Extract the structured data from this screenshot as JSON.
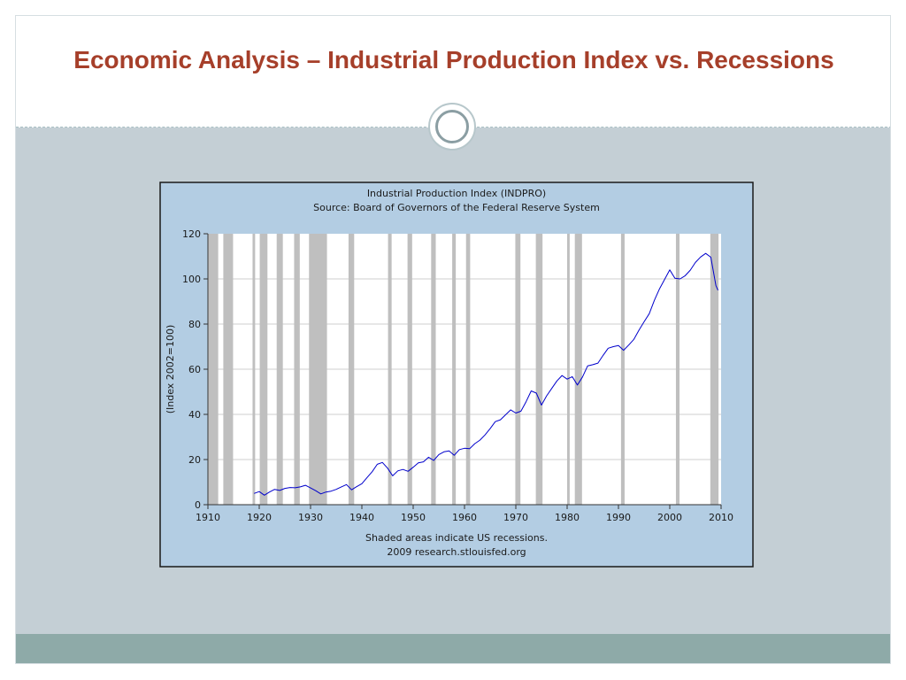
{
  "slide": {
    "title": "Economic Analysis – Industrial Production Index vs. Recessions"
  },
  "chart_data": {
    "type": "line",
    "title": "Industrial Production Index (INDPRO)",
    "subtitle": "Source: Board of Governors of the Federal Reserve System",
    "ylabel": "(Index 2002=100)",
    "note": "Shaded areas indicate US recessions.",
    "credit": "2009 research.stlouisfed.org",
    "xlim": [
      1910,
      2010
    ],
    "ylim": [
      0,
      120
    ],
    "x_ticks": [
      1910,
      1920,
      1930,
      1940,
      1950,
      1960,
      1970,
      1980,
      1990,
      2000,
      2010
    ],
    "y_ticks": [
      0,
      20,
      40,
      60,
      80,
      100,
      120
    ],
    "grid": "horizontal",
    "line_color": "#0000cc",
    "recession_color": "#bfbfbf",
    "recessions": [
      [
        1910.1,
        1912.0
      ],
      [
        1913.0,
        1914.9
      ],
      [
        1918.7,
        1919.2
      ],
      [
        1920.1,
        1921.6
      ],
      [
        1923.4,
        1924.6
      ],
      [
        1926.8,
        1927.9
      ],
      [
        1929.7,
        1933.2
      ],
      [
        1937.4,
        1938.5
      ],
      [
        1945.1,
        1945.8
      ],
      [
        1948.9,
        1949.8
      ],
      [
        1953.5,
        1954.4
      ],
      [
        1957.6,
        1958.3
      ],
      [
        1960.3,
        1961.1
      ],
      [
        1969.9,
        1970.9
      ],
      [
        1973.9,
        1975.2
      ],
      [
        1980.0,
        1980.5
      ],
      [
        1981.5,
        1982.9
      ],
      [
        1990.5,
        1991.2
      ],
      [
        2001.2,
        2001.9
      ],
      [
        2007.9,
        2009.5
      ]
    ],
    "series": [
      {
        "x": [
          1919.0,
          1920.0,
          1921.0,
          1922.0,
          1923.0,
          1924.0,
          1925.0,
          1926.0,
          1927.0,
          1928.0,
          1929.0,
          1930.0,
          1931.0,
          1932.0,
          1933.0,
          1934.0,
          1935.0,
          1936.0,
          1937.0,
          1938.0,
          1939.0,
          1940.0,
          1941.0,
          1942.0,
          1943.0,
          1944.0,
          1945.0,
          1946.0,
          1947.0,
          1948.0,
          1949.0,
          1950.0,
          1951.0,
          1952.0,
          1953.0,
          1954.0,
          1955.0,
          1956.0,
          1957.0,
          1958.0,
          1959.0,
          1960.0,
          1961.0,
          1962.0,
          1963.0,
          1964.0,
          1965.0,
          1966.0,
          1967.0,
          1968.0,
          1969.0,
          1970.0,
          1971.0,
          1972.0,
          1973.0,
          1974.0,
          1975.0,
          1976.0,
          1977.0,
          1978.0,
          1979.0,
          1980.0,
          1981.0,
          1982.0,
          1983.0,
          1984.0,
          1985.0,
          1986.0,
          1987.0,
          1988.0,
          1989.0,
          1990.0,
          1991.0,
          1992.0,
          1993.0,
          1994.0,
          1995.0,
          1996.0,
          1997.0,
          1998.0,
          1999.0,
          2000.0,
          2001.0,
          2002.0,
          2003.0,
          2004.0,
          2005.0,
          2006.0,
          2007.0,
          2008.0,
          2009.0,
          2009.4
        ],
        "values": [
          5.0,
          5.8,
          4.2,
          5.6,
          6.8,
          6.3,
          7.2,
          7.6,
          7.5,
          7.9,
          8.6,
          7.4,
          6.2,
          4.8,
          5.6,
          6.0,
          6.8,
          7.9,
          8.9,
          6.6,
          8.0,
          9.3,
          12.0,
          14.6,
          17.9,
          18.7,
          16.2,
          12.8,
          15.0,
          15.6,
          14.8,
          16.6,
          18.5,
          19.0,
          21.0,
          19.6,
          22.2,
          23.4,
          23.8,
          21.9,
          24.4,
          25.0,
          24.8,
          27.0,
          28.6,
          30.9,
          33.7,
          36.8,
          37.6,
          39.8,
          42.0,
          40.6,
          41.4,
          45.6,
          50.4,
          49.4,
          44.1,
          48.2,
          51.5,
          54.8,
          57.2,
          55.6,
          56.7,
          53.0,
          56.6,
          61.5,
          62.0,
          62.7,
          66.1,
          69.3,
          70.0,
          70.5,
          68.4,
          70.7,
          73.2,
          77.3,
          81.0,
          84.6,
          90.5,
          95.6,
          99.8,
          104.0,
          100.3,
          100.0,
          101.4,
          103.9,
          107.3,
          109.7,
          111.3,
          109.6,
          97.0,
          95.0
        ]
      }
    ]
  }
}
